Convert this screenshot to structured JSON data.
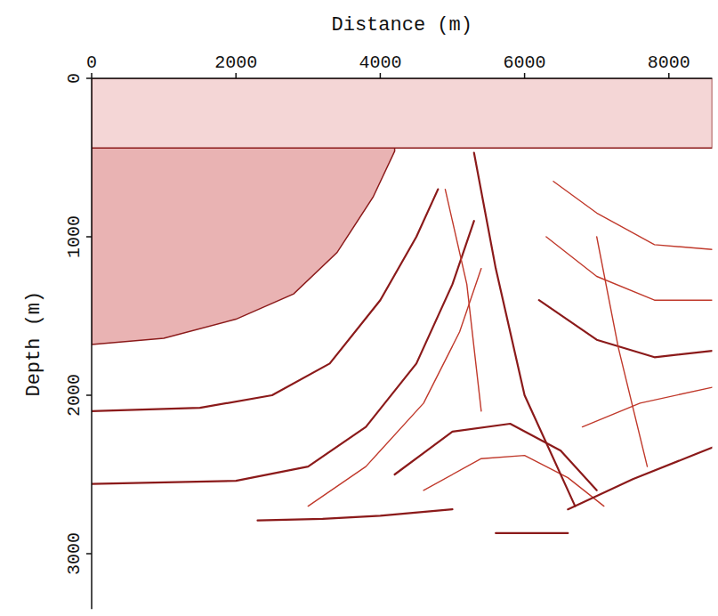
{
  "chart_data": {
    "type": "seismic",
    "x_label": "Distance (m)",
    "y_label": "Depth (m)",
    "xlim": [
      0,
      8600
    ],
    "ylim": [
      0,
      3350
    ],
    "xticks": [
      0,
      2000,
      4000,
      6000,
      8000
    ],
    "yticks": [
      0,
      1000,
      2000,
      3000
    ],
    "series": [
      {
        "type": "area",
        "color": "#e9b3b3",
        "x": [
          0,
          1000,
          2000,
          2800,
          3400,
          3900,
          4200
        ],
        "values": [
          1680,
          1640,
          1520,
          1360,
          1100,
          750,
          460
        ]
      },
      {
        "type": "area",
        "color": "#f4d6d6",
        "x": [
          0,
          8600
        ],
        "values": [
          440,
          440
        ]
      },
      {
        "type": "line",
        "color": "#8b1a1a",
        "x": [
          0,
          1500,
          2500,
          3300,
          4000,
          4500,
          4800
        ],
        "values": [
          2100,
          2080,
          2000,
          1800,
          1400,
          1000,
          700
        ]
      },
      {
        "type": "line",
        "color": "#8b1a1a",
        "x": [
          0,
          2000,
          3000,
          3800,
          4500,
          5000,
          5300
        ],
        "values": [
          2560,
          2540,
          2450,
          2200,
          1800,
          1300,
          900
        ]
      },
      {
        "type": "line",
        "color": "#8b1a1a",
        "x": [
          2300,
          3200,
          4000,
          5000
        ],
        "values": [
          2790,
          2780,
          2760,
          2720
        ]
      },
      {
        "type": "line",
        "color": "#c0392b",
        "x": [
          3000,
          3800,
          4600,
          5100,
          5400
        ],
        "values": [
          2700,
          2450,
          2050,
          1600,
          1200
        ]
      },
      {
        "type": "line",
        "color": "#8b1a1a",
        "x": [
          4200,
          5000,
          5800,
          6500,
          7000
        ],
        "values": [
          2500,
          2230,
          2180,
          2350,
          2600
        ]
      },
      {
        "type": "line",
        "color": "#c0392b",
        "x": [
          4600,
          5400,
          6000,
          6600,
          7100
        ],
        "values": [
          2600,
          2400,
          2380,
          2520,
          2700
        ]
      },
      {
        "type": "line",
        "color": "#8b1a1a",
        "x": [
          6600,
          7500,
          8600
        ],
        "values": [
          2720,
          2530,
          2330
        ]
      },
      {
        "type": "line",
        "color": "#8b1a1a",
        "x": [
          5600,
          6600
        ],
        "values": [
          2870,
          2870
        ]
      },
      {
        "type": "line",
        "color": "#8b1a1a",
        "x": [
          6200,
          7000,
          7800,
          8600
        ],
        "values": [
          1400,
          1650,
          1760,
          1720
        ]
      },
      {
        "type": "line",
        "color": "#c0392b",
        "x": [
          6300,
          7000,
          7800,
          8600
        ],
        "values": [
          1000,
          1250,
          1400,
          1400
        ]
      },
      {
        "type": "line",
        "color": "#c0392b",
        "x": [
          6400,
          7000,
          7800,
          8600
        ],
        "values": [
          650,
          850,
          1050,
          1080
        ]
      },
      {
        "type": "line",
        "color": "#c0392b",
        "x": [
          6800,
          7600,
          8600
        ],
        "values": [
          2200,
          2050,
          1950
        ]
      },
      {
        "type": "line",
        "color": "#8b1a1a",
        "x": [
          5300,
          5600,
          6000,
          6700
        ],
        "values": [
          470,
          1200,
          2000,
          2700
        ]
      },
      {
        "type": "line",
        "color": "#c0392b",
        "x": [
          4900,
          5200,
          5400
        ],
        "values": [
          700,
          1300,
          2100
        ]
      },
      {
        "type": "line",
        "color": "#c0392b",
        "x": [
          7000,
          7300,
          7700
        ],
        "values": [
          1000,
          1700,
          2450
        ]
      }
    ]
  }
}
